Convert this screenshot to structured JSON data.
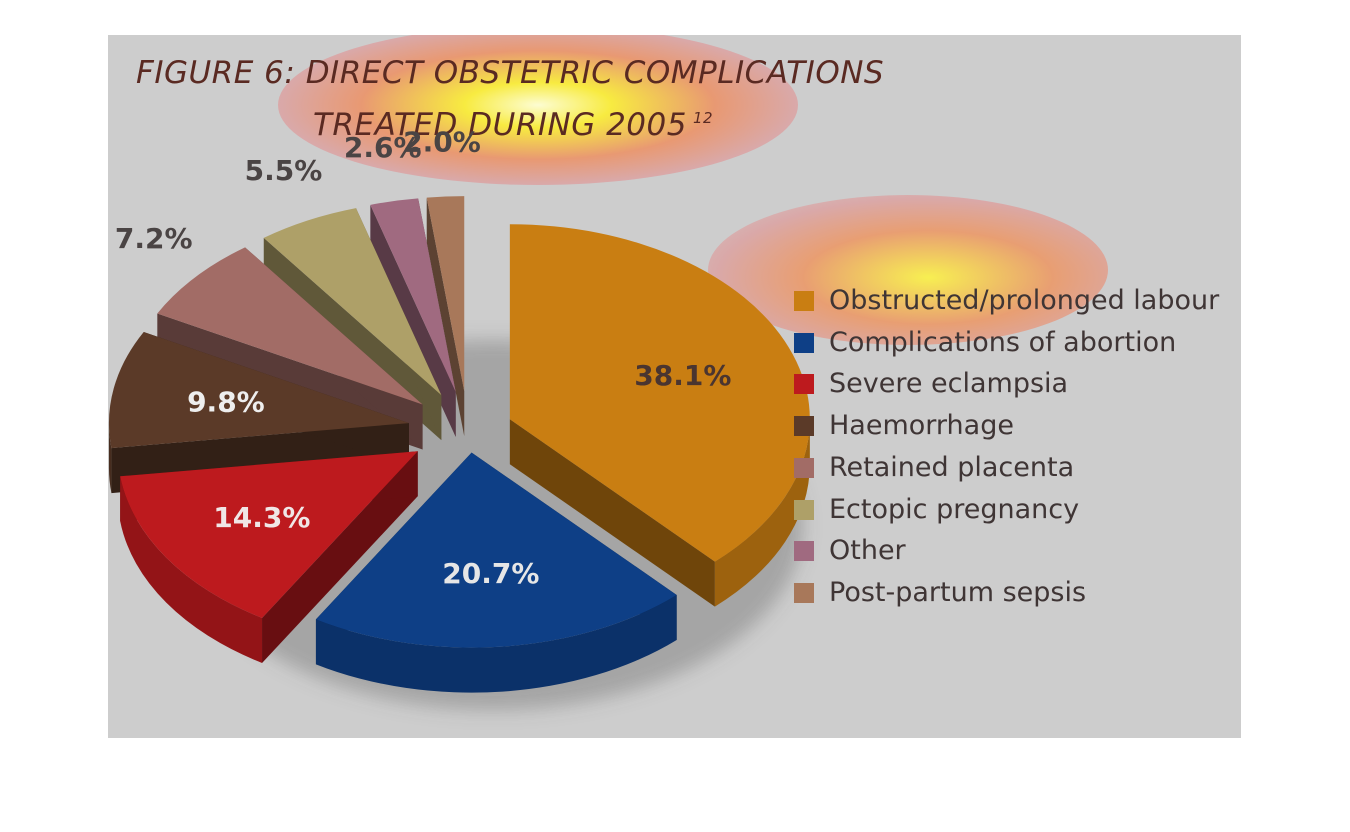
{
  "title": {
    "line1": "FIGURE 6: DIRECT OBSTETRIC COMPLICATIONS",
    "line2": "TREATED DURING 2005",
    "superscript": "12"
  },
  "chart_data": {
    "type": "pie",
    "title": "FIGURE 6: DIRECT OBSTETRIC COMPLICATIONS TREATED DURING 2005",
    "legend_position": "right",
    "slices": [
      {
        "label": "Obstructed/prolonged labour",
        "value": 38.1,
        "display": "38.1%",
        "color": "#c97e12"
      },
      {
        "label": "Complications of abortion",
        "value": 20.7,
        "display": "20.7%",
        "color": "#0e3f86"
      },
      {
        "label": "Severe eclampsia",
        "value": 14.3,
        "display": "14.3%",
        "color": "#bd1a1e"
      },
      {
        "label": "Haemorrhage",
        "value": 9.8,
        "display": "9.8%",
        "color": "#5b3a28"
      },
      {
        "label": "Retained placenta",
        "value": 7.2,
        "display": "7.2%",
        "color": "#a26c66"
      },
      {
        "label": "Ectopic pregnancy",
        "value": 5.5,
        "display": "5.5%",
        "color": "#aea068"
      },
      {
        "label": "Other",
        "value": 2.6,
        "display": "2.6%",
        "color": "#a06a80"
      },
      {
        "label": "Post-partum sepsis",
        "value": 2.0,
        "display": "2.0%",
        "color": "#a8785a"
      }
    ]
  }
}
